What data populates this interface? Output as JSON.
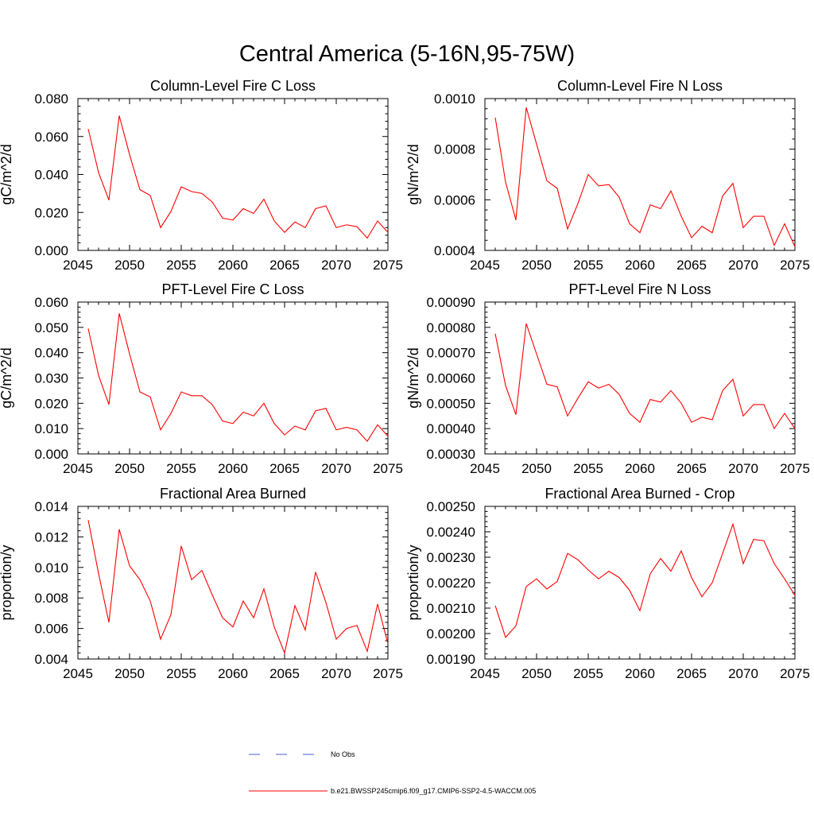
{
  "page_title": "Central America (5-16N,95-75W)",
  "colors": {
    "series": "#ff0000",
    "obs": "#4a5fd0",
    "axis": "#000000"
  },
  "legend": {
    "obs_label": "No Obs",
    "series_label": "b.e21.BWSSP245cmip6.f09_g17.CMIP6-SSP2-4.5-WACCM.005"
  },
  "chart_data": [
    {
      "type": "line",
      "title": "Column-Level Fire C Loss",
      "ylabel": "gC/m^2/d",
      "xlabel": "",
      "xlim": [
        2045,
        2075
      ],
      "ylim": [
        0.0,
        0.08
      ],
      "xticks": [
        2045,
        2050,
        2055,
        2060,
        2065,
        2070,
        2075
      ],
      "yticks": [
        0.0,
        0.02,
        0.04,
        0.06,
        0.08
      ],
      "ytick_labels": [
        "0.000",
        "0.020",
        "0.040",
        "0.060",
        "0.080"
      ],
      "x": [
        2046,
        2047,
        2048,
        2049,
        2050,
        2051,
        2052,
        2053,
        2054,
        2055,
        2056,
        2057,
        2058,
        2059,
        2060,
        2061,
        2062,
        2063,
        2064,
        2065,
        2066,
        2067,
        2068,
        2069,
        2070,
        2071,
        2072,
        2073,
        2074,
        2075
      ],
      "values": [
        0.064,
        0.041,
        0.0265,
        0.071,
        0.0505,
        0.032,
        0.029,
        0.012,
        0.0205,
        0.0335,
        0.031,
        0.03,
        0.0255,
        0.017,
        0.016,
        0.022,
        0.0195,
        0.027,
        0.0155,
        0.0095,
        0.015,
        0.012,
        0.022,
        0.0235,
        0.012,
        0.0135,
        0.0125,
        0.0065,
        0.0155,
        0.0095
      ]
    },
    {
      "type": "line",
      "title": "Column-Level Fire N Loss",
      "ylabel": "gN/m^2/d",
      "xlabel": "",
      "xlim": [
        2045,
        2075
      ],
      "ylim": [
        0.0004,
        0.001
      ],
      "xticks": [
        2045,
        2050,
        2055,
        2060,
        2065,
        2070,
        2075
      ],
      "yticks": [
        0.0004,
        0.0006,
        0.0008,
        0.001
      ],
      "ytick_labels": [
        "0.0004",
        "0.0006",
        "0.0008",
        "0.0010"
      ],
      "x": [
        2046,
        2047,
        2048,
        2049,
        2050,
        2051,
        2052,
        2053,
        2054,
        2055,
        2056,
        2057,
        2058,
        2059,
        2060,
        2061,
        2062,
        2063,
        2064,
        2065,
        2066,
        2067,
        2068,
        2069,
        2070,
        2071,
        2072,
        2073,
        2074,
        2075
      ],
      "values": [
        0.000925,
        0.00067,
        0.00052,
        0.000965,
        0.00082,
        0.000675,
        0.000645,
        0.000485,
        0.000585,
        0.0007,
        0.000655,
        0.00066,
        0.00061,
        0.000505,
        0.00047,
        0.00058,
        0.000565,
        0.000635,
        0.000535,
        0.00045,
        0.000495,
        0.00047,
        0.000615,
        0.000665,
        0.00049,
        0.000535,
        0.000535,
        0.00042,
        0.000505,
        0.000415
      ]
    },
    {
      "type": "line",
      "title": "PFT-Level Fire C Loss",
      "ylabel": "gC/m^2/d",
      "xlabel": "",
      "xlim": [
        2045,
        2075
      ],
      "ylim": [
        0.0,
        0.06
      ],
      "xticks": [
        2045,
        2050,
        2055,
        2060,
        2065,
        2070,
        2075
      ],
      "yticks": [
        0.0,
        0.01,
        0.02,
        0.03,
        0.04,
        0.05,
        0.06
      ],
      "ytick_labels": [
        "0.000",
        "0.010",
        "0.020",
        "0.030",
        "0.040",
        "0.050",
        "0.060"
      ],
      "x": [
        2046,
        2047,
        2048,
        2049,
        2050,
        2051,
        2052,
        2053,
        2054,
        2055,
        2056,
        2057,
        2058,
        2059,
        2060,
        2061,
        2062,
        2063,
        2064,
        2065,
        2066,
        2067,
        2068,
        2069,
        2070,
        2071,
        2072,
        2073,
        2074,
        2075
      ],
      "values": [
        0.0495,
        0.031,
        0.0195,
        0.0555,
        0.0395,
        0.0245,
        0.0225,
        0.0095,
        0.016,
        0.0245,
        0.023,
        0.023,
        0.0195,
        0.013,
        0.012,
        0.0165,
        0.015,
        0.02,
        0.012,
        0.0075,
        0.011,
        0.0095,
        0.017,
        0.018,
        0.0095,
        0.0105,
        0.0095,
        0.005,
        0.0115,
        0.007
      ]
    },
    {
      "type": "line",
      "title": "PFT-Level Fire N Loss",
      "ylabel": "gN/m^2/d",
      "xlabel": "",
      "xlim": [
        2045,
        2075
      ],
      "ylim": [
        0.0003,
        0.0009
      ],
      "xticks": [
        2045,
        2050,
        2055,
        2060,
        2065,
        2070,
        2075
      ],
      "yticks": [
        0.0003,
        0.0004,
        0.0005,
        0.0006,
        0.0007,
        0.0008,
        0.0009
      ],
      "ytick_labels": [
        "0.00030",
        "0.00040",
        "0.00050",
        "0.00060",
        "0.00070",
        "0.00080",
        "0.00090"
      ],
      "x": [
        2046,
        2047,
        2048,
        2049,
        2050,
        2051,
        2052,
        2053,
        2054,
        2055,
        2056,
        2057,
        2058,
        2059,
        2060,
        2061,
        2062,
        2063,
        2064,
        2065,
        2066,
        2067,
        2068,
        2069,
        2070,
        2071,
        2072,
        2073,
        2074,
        2075
      ],
      "values": [
        0.000775,
        0.00057,
        0.000455,
        0.000815,
        0.000695,
        0.000575,
        0.000565,
        0.00045,
        0.00052,
        0.000585,
        0.00056,
        0.000575,
        0.000535,
        0.00046,
        0.000425,
        0.000515,
        0.000505,
        0.00055,
        0.0005,
        0.000425,
        0.000445,
        0.000435,
        0.00055,
        0.000595,
        0.00045,
        0.000495,
        0.000495,
        0.0004,
        0.00046,
        0.0004
      ]
    },
    {
      "type": "line",
      "title": "Fractional Area Burned",
      "ylabel": "proportion/y",
      "xlabel": "",
      "xlim": [
        2045,
        2075
      ],
      "ylim": [
        0.004,
        0.014
      ],
      "xticks": [
        2045,
        2050,
        2055,
        2060,
        2065,
        2070,
        2075
      ],
      "yticks": [
        0.004,
        0.006,
        0.008,
        0.01,
        0.012,
        0.014
      ],
      "ytick_labels": [
        "0.004",
        "0.006",
        "0.008",
        "0.010",
        "0.012",
        "0.014"
      ],
      "x": [
        2046,
        2047,
        2048,
        2049,
        2050,
        2051,
        2052,
        2053,
        2054,
        2055,
        2056,
        2057,
        2058,
        2059,
        2060,
        2061,
        2062,
        2063,
        2064,
        2065,
        2066,
        2067,
        2068,
        2069,
        2070,
        2071,
        2072,
        2073,
        2074,
        2075
      ],
      "values": [
        0.0131,
        0.0096,
        0.0064,
        0.0125,
        0.0101,
        0.0092,
        0.0078,
        0.0053,
        0.0069,
        0.0114,
        0.0092,
        0.0098,
        0.0082,
        0.0067,
        0.0061,
        0.0078,
        0.0067,
        0.0086,
        0.0061,
        0.0044,
        0.0075,
        0.0059,
        0.0097,
        0.0077,
        0.0053,
        0.006,
        0.0062,
        0.0045,
        0.0076,
        0.005
      ]
    },
    {
      "type": "line",
      "title": "Fractional Area Burned - Crop",
      "ylabel": "proportion/y",
      "xlabel": "",
      "xlim": [
        2045,
        2075
      ],
      "ylim": [
        0.0019,
        0.0025
      ],
      "xticks": [
        2045,
        2050,
        2055,
        2060,
        2065,
        2070,
        2075
      ],
      "yticks": [
        0.0019,
        0.002,
        0.0021,
        0.0022,
        0.0023,
        0.0024,
        0.0025
      ],
      "ytick_labels": [
        "0.00190",
        "0.00200",
        "0.00210",
        "0.00220",
        "0.00230",
        "0.00240",
        "0.00250"
      ],
      "x": [
        2046,
        2047,
        2048,
        2049,
        2050,
        2051,
        2052,
        2053,
        2054,
        2055,
        2056,
        2057,
        2058,
        2059,
        2060,
        2061,
        2062,
        2063,
        2064,
        2065,
        2066,
        2067,
        2068,
        2069,
        2070,
        2071,
        2072,
        2073,
        2074,
        2075
      ],
      "values": [
        0.00211,
        0.001985,
        0.00203,
        0.002185,
        0.002215,
        0.002175,
        0.002205,
        0.002315,
        0.00229,
        0.00225,
        0.002215,
        0.002245,
        0.00222,
        0.00217,
        0.00209,
        0.002235,
        0.002295,
        0.002245,
        0.002325,
        0.00222,
        0.002145,
        0.0022,
        0.002315,
        0.00243,
        0.002275,
        0.00237,
        0.002365,
        0.002275,
        0.002215,
        0.00215
      ]
    }
  ]
}
